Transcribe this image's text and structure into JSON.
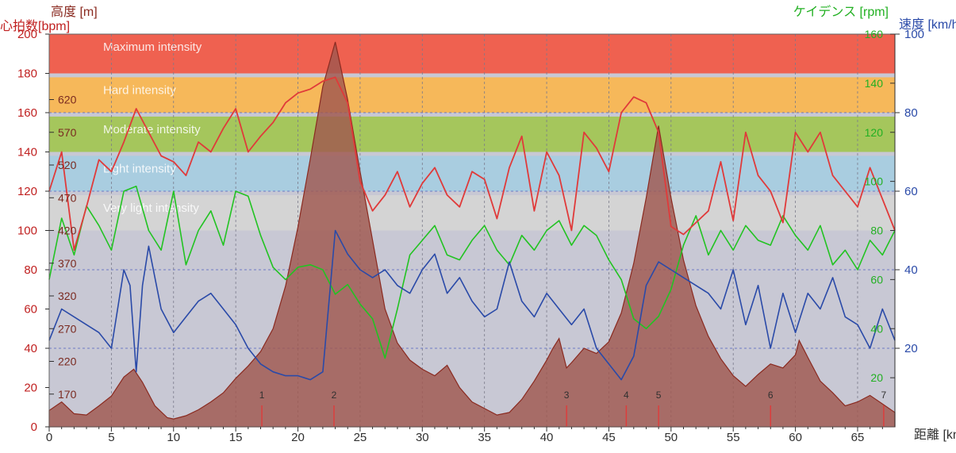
{
  "colors": {
    "heart_rate": "#e03a3a",
    "cadence": "#22c322",
    "speed": "#2a4aa8",
    "altitude_fill": "#a0584f",
    "altitude_line": "#8a2a20",
    "heart_axis": "#c02020",
    "altitude_axis": "#8a2a20",
    "cadence_axis": "#22b022",
    "speed_axis": "#2a4aa8",
    "lap_marker": "#e03a3a"
  },
  "chart_data": {
    "type": "line",
    "axes": {
      "altitude": {
        "label": "高度 [m]",
        "range": [
          120,
          720
        ],
        "ticks": [
          170,
          220,
          270,
          320,
          370,
          420,
          470,
          520,
          570,
          620
        ]
      },
      "heart_rate": {
        "label": "心拍数[bpm]",
        "range": [
          0,
          200
        ],
        "ticks": [
          0,
          20,
          40,
          60,
          80,
          100,
          120,
          140,
          160,
          180,
          200
        ]
      },
      "cadence": {
        "label": "ケイデンス [rpm]",
        "range": [
          0,
          160
        ],
        "ticks": [
          20,
          40,
          60,
          80,
          100,
          120,
          140,
          160
        ]
      },
      "speed": {
        "label": "速度 [km/h]",
        "range": [
          0,
          100
        ],
        "ticks": [
          20,
          40,
          60,
          80,
          100
        ]
      },
      "distance": {
        "label": "距離 [km]",
        "range": [
          0,
          68
        ],
        "ticks": [
          0,
          5,
          10,
          15,
          20,
          25,
          30,
          35,
          40,
          45,
          50,
          55,
          60,
          65
        ]
      }
    },
    "zones": [
      {
        "label": "Maximum intensity",
        "from": 180,
        "to": 200,
        "color": "#ef6150"
      },
      {
        "label": "Hard intensity",
        "from": 160,
        "to": 178,
        "color": "#f6b85a"
      },
      {
        "label": "Moderate intensity",
        "from": 140,
        "to": 158,
        "color": "#a5c65c"
      },
      {
        "label": "Light intensity",
        "from": 120,
        "to": 138,
        "color": "#a9cde0"
      },
      {
        "label": "Very light intensity",
        "from": 100,
        "to": 118,
        "color": "#d4d4d4"
      }
    ],
    "laps": [
      {
        "label": "1",
        "x": 17.1
      },
      {
        "label": "2",
        "x": 22.9
      },
      {
        "label": "3",
        "x": 41.6
      },
      {
        "label": "4",
        "x": 46.4
      },
      {
        "label": "5",
        "x": 49.0
      },
      {
        "label": "6",
        "x": 58.0
      },
      {
        "label": "7",
        "x": 67.1
      }
    ],
    "series": [
      {
        "name": "高度",
        "axis": "altitude",
        "x": [
          0,
          1,
          2,
          3,
          4,
          5,
          6,
          6.8,
          7.5,
          8.5,
          9.5,
          10,
          11,
          12,
          13,
          14,
          15,
          16,
          17,
          18,
          19,
          20,
          21,
          22,
          23,
          24,
          25,
          26,
          27,
          28,
          29,
          30,
          31,
          32,
          33,
          34,
          35,
          36,
          37,
          38,
          39,
          40,
          40.5,
          41,
          41.6,
          42,
          43,
          44,
          45,
          46,
          47,
          48,
          49,
          50,
          51,
          52,
          53,
          54,
          55,
          56,
          57,
          58,
          59,
          60,
          60.3,
          61,
          62,
          63,
          64,
          65,
          66,
          67,
          68
        ],
        "values": [
          145,
          158,
          140,
          138,
          152,
          167,
          196,
          208,
          188,
          152,
          134,
          132,
          137,
          146,
          158,
          172,
          194,
          213,
          235,
          270,
          335,
          425,
          530,
          640,
          708,
          620,
          510,
          405,
          300,
          248,
          222,
          208,
          198,
          214,
          180,
          158,
          148,
          138,
          142,
          162,
          190,
          222,
          240,
          255,
          210,
          218,
          240,
          232,
          250,
          294,
          370,
          470,
          580,
          470,
          375,
          305,
          258,
          224,
          198,
          182,
          200,
          216,
          210,
          230,
          252,
          226,
          190,
          172,
          152,
          158,
          168,
          155,
          142
        ]
      },
      {
        "name": "心拍数",
        "axis": "heart_rate",
        "x": [
          0,
          1,
          2,
          3,
          4,
          5,
          6,
          7,
          8,
          9,
          10,
          11,
          12,
          13,
          14,
          15,
          16,
          17,
          18,
          19,
          20,
          21,
          22,
          23,
          24,
          25,
          26,
          27,
          28,
          29,
          30,
          31,
          32,
          33,
          34,
          35,
          36,
          37,
          38,
          39,
          40,
          41,
          42,
          43,
          44,
          45,
          46,
          47,
          48,
          49,
          50,
          51,
          52,
          53,
          54,
          55,
          56,
          57,
          58,
          59,
          60,
          61,
          62,
          63,
          64,
          65,
          66,
          67,
          68
        ],
        "values": [
          120,
          140,
          90,
          112,
          136,
          130,
          145,
          162,
          150,
          138,
          135,
          128,
          145,
          140,
          152,
          162,
          140,
          148,
          155,
          165,
          170,
          172,
          176,
          178,
          165,
          125,
          110,
          118,
          130,
          112,
          124,
          132,
          118,
          112,
          130,
          126,
          106,
          132,
          148,
          110,
          140,
          128,
          100,
          150,
          142,
          130,
          160,
          168,
          165,
          150,
          102,
          98,
          104,
          110,
          135,
          105,
          150,
          128,
          120,
          104,
          150,
          140,
          150,
          128,
          120,
          112,
          132,
          116,
          100
        ]
      },
      {
        "name": "ケイデンス",
        "axis": "cadence",
        "x": [
          0,
          1,
          2,
          3,
          4,
          5,
          6,
          7,
          8,
          9,
          10,
          11,
          12,
          13,
          14,
          15,
          16,
          17,
          18,
          19,
          20,
          21,
          22,
          23,
          24,
          25,
          26,
          27,
          28,
          29,
          30,
          31,
          32,
          33,
          34,
          35,
          36,
          37,
          38,
          39,
          40,
          41,
          42,
          43,
          44,
          45,
          46,
          47,
          48,
          49,
          50,
          51,
          52,
          53,
          54,
          55,
          56,
          57,
          58,
          59,
          60,
          61,
          62,
          63,
          64,
          65,
          66,
          67,
          68
        ],
        "values": [
          60,
          85,
          70,
          90,
          82,
          72,
          96,
          98,
          80,
          72,
          96,
          66,
          80,
          88,
          74,
          96,
          94,
          78,
          65,
          60,
          65,
          66,
          64,
          54,
          58,
          50,
          44,
          28,
          48,
          70,
          76,
          82,
          70,
          68,
          76,
          82,
          72,
          66,
          78,
          72,
          80,
          84,
          74,
          82,
          78,
          68,
          60,
          44,
          40,
          45,
          56,
          74,
          86,
          70,
          80,
          72,
          82,
          76,
          74,
          86,
          78,
          72,
          82,
          66,
          72,
          64,
          76,
          70,
          80
        ]
      },
      {
        "name": "速度",
        "axis": "speed",
        "x": [
          0,
          1,
          2,
          3,
          4,
          5,
          6,
          6.5,
          7,
          7.5,
          8,
          9,
          10,
          11,
          12,
          13,
          14,
          15,
          16,
          17,
          18,
          19,
          20,
          21,
          22,
          23,
          24,
          25,
          26,
          27,
          28,
          29,
          30,
          31,
          32,
          33,
          34,
          35,
          36,
          37,
          38,
          39,
          40,
          41,
          42,
          43,
          44,
          45,
          46,
          47,
          48,
          49,
          50,
          51,
          52,
          53,
          54,
          55,
          56,
          57,
          58,
          59,
          60,
          61,
          62,
          63,
          64,
          65,
          66,
          67,
          68
        ],
        "values": [
          22,
          30,
          28,
          26,
          24,
          20,
          40,
          36,
          14,
          36,
          46,
          30,
          24,
          28,
          32,
          34,
          30,
          26,
          20,
          16,
          14,
          13,
          13,
          12,
          14,
          50,
          44,
          40,
          38,
          40,
          36,
          34,
          40,
          44,
          34,
          38,
          32,
          28,
          30,
          42,
          32,
          28,
          34,
          30,
          26,
          30,
          20,
          16,
          12,
          18,
          36,
          42,
          40,
          38,
          36,
          34,
          30,
          40,
          26,
          36,
          20,
          34,
          24,
          34,
          30,
          38,
          28,
          26,
          20,
          30,
          22
        ]
      }
    ],
    "grid": true
  }
}
